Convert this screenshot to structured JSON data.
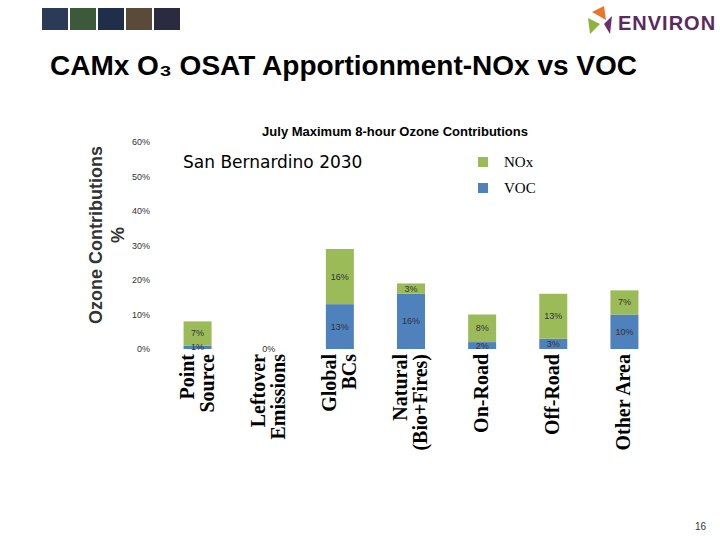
{
  "chart_data": {
    "type": "bar",
    "title": "CAMx O₃ OSAT Apportionment-NOx vs VOC",
    "subtitle": "July Maximum 8-hour Ozone Contributions",
    "annotations": [
      "San Bernardino 2030"
    ],
    "y_label": "Ozone Contributions\n%",
    "logo": "ENVIRON",
    "page_number": "16",
    "categories": [
      "Point\nSource",
      "Leftover\nEmissions",
      "Global\nBCs",
      "Natural\n(Bio+Fires)",
      "On-Road",
      "Off-Road",
      "Other Area"
    ],
    "series": [
      {
        "name": "NOx",
        "color": "#9bbb59",
        "values": [
          7,
          null,
          16,
          3,
          8,
          13,
          7
        ],
        "value_labels": [
          "7%",
          null,
          "16%",
          "3%",
          "8%",
          "13%",
          "7%"
        ]
      },
      {
        "name": "VOC",
        "color": "#4f81bd",
        "values": [
          1,
          0,
          13,
          16,
          2,
          3,
          10
        ],
        "value_labels": [
          "1%",
          "0%",
          "13%",
          "16%",
          "2%",
          "3%",
          "10%"
        ]
      }
    ],
    "ylim": [
      0,
      60
    ],
    "yticks": [
      {
        "value": 0,
        "label": "0%"
      },
      {
        "value": 10,
        "label": "10%"
      },
      {
        "value": 20,
        "label": "20%"
      },
      {
        "value": 30,
        "label": "30%"
      },
      {
        "value": 40,
        "label": "40%"
      },
      {
        "value": 50,
        "label": "50%"
      },
      {
        "value": 60,
        "label": "60%"
      }
    ],
    "stacked": true,
    "data_labels": true,
    "grid": false,
    "legend": "top-right"
  }
}
